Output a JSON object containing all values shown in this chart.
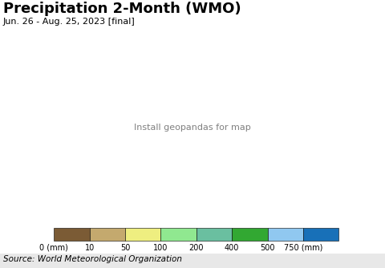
{
  "title": "Precipitation 2-Month (WMO)",
  "subtitle": "Jun. 26 - Aug. 25, 2023 [final]",
  "source": "Source: World Meteorological Organization",
  "colorbar_colors": [
    "#7B5B35",
    "#C4A96E",
    "#EEEE80",
    "#90E890",
    "#6ABFA0",
    "#32A832",
    "#90C8F0",
    "#1870B8"
  ],
  "colorbar_labels": [
    "0 (mm)",
    "10",
    "50",
    "100",
    "200",
    "400",
    "500",
    "750 (mm)"
  ],
  "ocean_color": "#C0ECFA",
  "background_color": "#FFFFFF",
  "source_bg_color": "#E8E8E8",
  "title_fontsize": 13,
  "subtitle_fontsize": 8,
  "source_fontsize": 7.5,
  "colorbar_label_fontsize": 7
}
